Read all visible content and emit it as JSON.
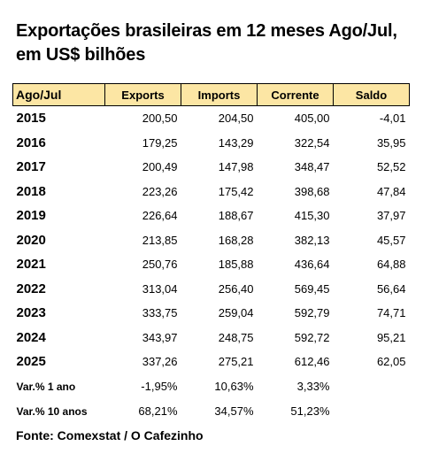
{
  "title_line1": "Exportações brasileiras em 12 meses Ago/Jul,",
  "title_line2": "em US$ bilhões",
  "header_bg": "#fce6a4",
  "headers": [
    "Ago/Jul",
    "Exports",
    "Imports",
    "Corrente",
    "Saldo"
  ],
  "rows": [
    [
      "2015",
      "200,50",
      "204,50",
      "405,00",
      "-4,01"
    ],
    [
      "2016",
      "179,25",
      "143,29",
      "322,54",
      "35,95"
    ],
    [
      "2017",
      "200,49",
      "147,98",
      "348,47",
      "52,52"
    ],
    [
      "2018",
      "223,26",
      "175,42",
      "398,68",
      "47,84"
    ],
    [
      "2019",
      "226,64",
      "188,67",
      "415,30",
      "37,97"
    ],
    [
      "2020",
      "213,85",
      "168,28",
      "382,13",
      "45,57"
    ],
    [
      "2021",
      "250,76",
      "185,88",
      "436,64",
      "64,88"
    ],
    [
      "2022",
      "313,04",
      "256,40",
      "569,45",
      "56,64"
    ],
    [
      "2023",
      "333,75",
      "259,04",
      "592,79",
      "74,71"
    ],
    [
      "2024",
      "343,97",
      "248,75",
      "592,72",
      "95,21"
    ],
    [
      "2025",
      "337,26",
      "275,21",
      "612,46",
      "62,05"
    ]
  ],
  "var_rows": [
    [
      "Var.% 1 ano",
      "-1,95%",
      "10,63%",
      "3,33%",
      ""
    ],
    [
      "Var.% 10 anos",
      "68,21%",
      "34,57%",
      "51,23%",
      ""
    ]
  ],
  "source": "Fonte: Comexstat / O Cafezinho"
}
